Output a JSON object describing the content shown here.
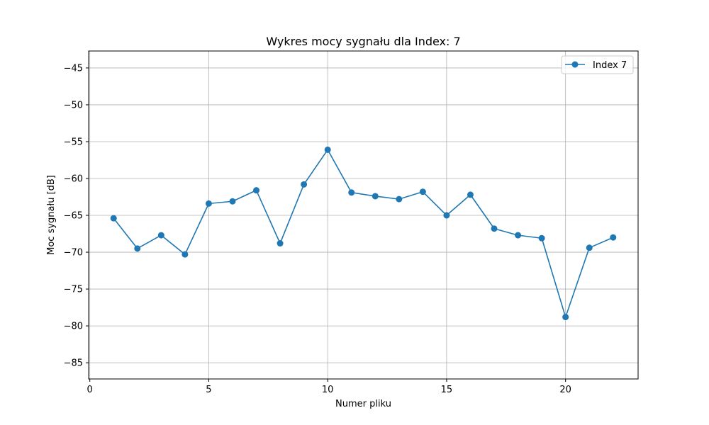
{
  "chart_data": {
    "type": "line",
    "title": "Wykres mocy sygnału dla Index: 7",
    "xlabel": "Numer pliku",
    "ylabel": "Moc sygnału [dB]",
    "xlim": [
      -0.05,
      23.05
    ],
    "ylim": [
      -87.2,
      -42.7
    ],
    "x_ticks": [
      0,
      5,
      10,
      15,
      20
    ],
    "x_tick_labels": [
      "0",
      "5",
      "10",
      "15",
      "20"
    ],
    "y_ticks": [
      -45,
      -50,
      -55,
      -60,
      -65,
      -70,
      -75,
      -80,
      -85
    ],
    "y_tick_labels": [
      "−45",
      "−50",
      "−55",
      "−60",
      "−65",
      "−70",
      "−75",
      "−80",
      "−85"
    ],
    "grid": true,
    "legend_position": "top-right",
    "series": [
      {
        "name": "Index 7",
        "color": "#1f77b4",
        "marker": "circle",
        "x": [
          1,
          2,
          3,
          4,
          5,
          6,
          7,
          8,
          9,
          10,
          11,
          12,
          13,
          14,
          15,
          16,
          17,
          18,
          19,
          20,
          21,
          22
        ],
        "y": [
          -65.4,
          -69.5,
          -67.7,
          -70.3,
          -63.4,
          -63.1,
          -61.6,
          -68.8,
          -60.8,
          -56.1,
          -61.9,
          -62.4,
          -62.8,
          -61.8,
          -65.0,
          -62.2,
          -66.8,
          -67.7,
          -68.1,
          -78.8,
          -69.4,
          -68.0
        ]
      }
    ]
  }
}
